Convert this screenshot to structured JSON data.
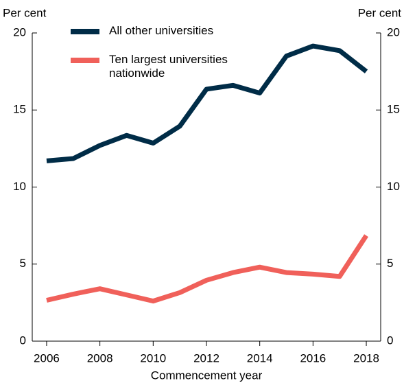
{
  "chart_data": {
    "type": "line",
    "y_label": "Per cent",
    "y2_label": "Per cent",
    "x_label": "Commencement year",
    "x": [
      2006,
      2007,
      2008,
      2009,
      2010,
      2011,
      2012,
      2013,
      2014,
      2015,
      2016,
      2017,
      2018
    ],
    "series": [
      {
        "name": "All other universities",
        "color": "#002c47",
        "values": [
          11.7,
          11.85,
          12.7,
          13.35,
          12.85,
          13.95,
          16.35,
          16.6,
          16.1,
          18.5,
          19.15,
          18.85,
          17.5
        ]
      },
      {
        "name": "Ten largest universities\nnationwide",
        "color": "#f0605a",
        "values": [
          2.65,
          3.05,
          3.4,
          3.0,
          2.6,
          3.15,
          3.95,
          4.45,
          4.8,
          4.45,
          4.35,
          4.2,
          6.85
        ]
      }
    ],
    "xlim": [
      2005.46,
      2018.54
    ],
    "xticks": [
      2006,
      2008,
      2010,
      2012,
      2014,
      2016,
      2018
    ],
    "ylim": [
      0,
      20
    ],
    "yticks": [
      0,
      5,
      10,
      15,
      20
    ],
    "y2lim": [
      0,
      20
    ],
    "y2ticks": [
      0,
      5,
      10,
      15,
      20
    ]
  }
}
